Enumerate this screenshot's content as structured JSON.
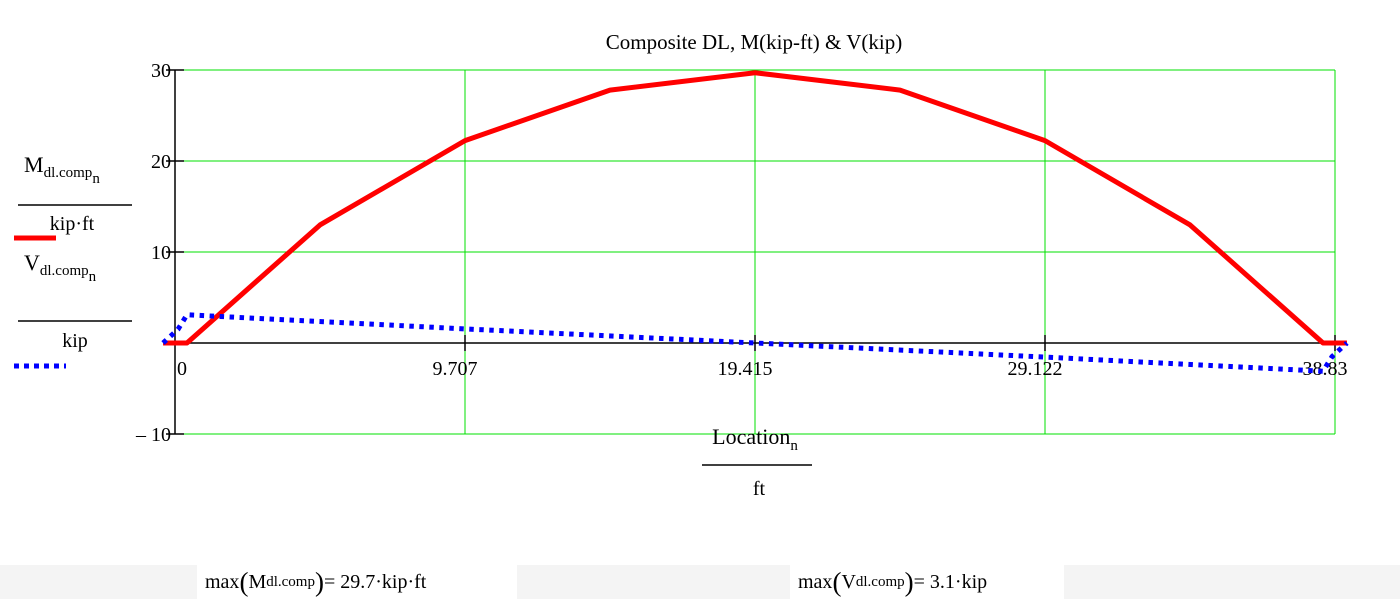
{
  "chart_data": {
    "type": "line",
    "title": "Composite DL, M(kip-ft) & V(kip)",
    "xlim": [
      0,
      38.83
    ],
    "ylim": [
      -10,
      30
    ],
    "x_ticks": [
      "0",
      "9.707",
      "19.415",
      "29.122",
      "38.83"
    ],
    "y_ticks": [
      "30",
      "20",
      "10",
      "– 10"
    ],
    "grid": true,
    "xlabel": {
      "main": "Location",
      "sub": "n",
      "unit": "ft"
    },
    "series": [
      {
        "label_main": "M",
        "label_sub": "dl.comp",
        "label_subsub": "n",
        "unit": "kip·ft",
        "color": "#ff0000",
        "style": "solid",
        "x": [
          -0.4,
          0.4,
          4.853,
          9.707,
          14.56,
          19.415,
          24.27,
          29.122,
          33.98,
          38.43,
          39.23
        ],
        "values": [
          0,
          0,
          12.97,
          22.24,
          27.79,
          29.7,
          27.79,
          22.24,
          12.97,
          0,
          0
        ]
      },
      {
        "label_main": "V",
        "label_sub": "dl.comp",
        "label_subsub": "n",
        "unit": "kip",
        "color": "#0000ff",
        "style": "dotted",
        "x": [
          -0.4,
          0.1,
          0.4,
          9.707,
          19.415,
          29.122,
          38.43,
          38.73,
          39.23
        ],
        "values": [
          0,
          1.5,
          3.1,
          1.55,
          0,
          -1.55,
          -3.1,
          -1.5,
          0
        ]
      }
    ]
  },
  "results": {
    "moment": {
      "func": "max",
      "var": "M",
      "sub": "dl.comp",
      "eq": " = 29.7·kip·ft"
    },
    "shear": {
      "func": "max",
      "var": "V",
      "sub": "dl.comp",
      "eq": " = 3.1·kip"
    }
  }
}
